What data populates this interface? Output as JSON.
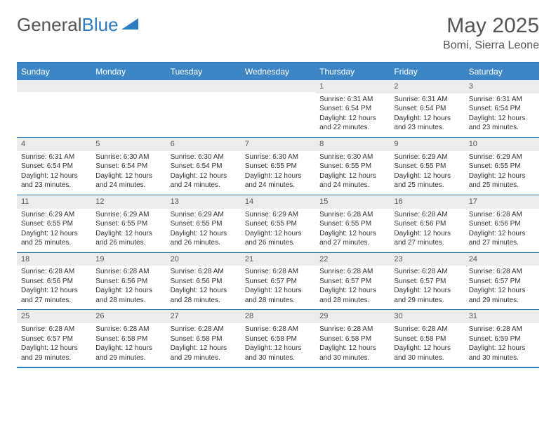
{
  "brand": {
    "part1": "General",
    "part2": "Blue"
  },
  "title": "May 2025",
  "location": "Bomi, Sierra Leone",
  "colors": {
    "header_bg": "#3d86c6",
    "border": "#2e7bc0",
    "daynum_bg": "#ececec",
    "text": "#333333",
    "muted": "#555555"
  },
  "weekdays": [
    "Sunday",
    "Monday",
    "Tuesday",
    "Wednesday",
    "Thursday",
    "Friday",
    "Saturday"
  ],
  "weeks": [
    [
      null,
      null,
      null,
      null,
      {
        "n": 1,
        "sr": "6:31 AM",
        "ss": "6:54 PM",
        "dl": "12 hours and 22 minutes."
      },
      {
        "n": 2,
        "sr": "6:31 AM",
        "ss": "6:54 PM",
        "dl": "12 hours and 23 minutes."
      },
      {
        "n": 3,
        "sr": "6:31 AM",
        "ss": "6:54 PM",
        "dl": "12 hours and 23 minutes."
      }
    ],
    [
      {
        "n": 4,
        "sr": "6:31 AM",
        "ss": "6:54 PM",
        "dl": "12 hours and 23 minutes."
      },
      {
        "n": 5,
        "sr": "6:30 AM",
        "ss": "6:54 PM",
        "dl": "12 hours and 24 minutes."
      },
      {
        "n": 6,
        "sr": "6:30 AM",
        "ss": "6:54 PM",
        "dl": "12 hours and 24 minutes."
      },
      {
        "n": 7,
        "sr": "6:30 AM",
        "ss": "6:55 PM",
        "dl": "12 hours and 24 minutes."
      },
      {
        "n": 8,
        "sr": "6:30 AM",
        "ss": "6:55 PM",
        "dl": "12 hours and 24 minutes."
      },
      {
        "n": 9,
        "sr": "6:29 AM",
        "ss": "6:55 PM",
        "dl": "12 hours and 25 minutes."
      },
      {
        "n": 10,
        "sr": "6:29 AM",
        "ss": "6:55 PM",
        "dl": "12 hours and 25 minutes."
      }
    ],
    [
      {
        "n": 11,
        "sr": "6:29 AM",
        "ss": "6:55 PM",
        "dl": "12 hours and 25 minutes."
      },
      {
        "n": 12,
        "sr": "6:29 AM",
        "ss": "6:55 PM",
        "dl": "12 hours and 26 minutes."
      },
      {
        "n": 13,
        "sr": "6:29 AM",
        "ss": "6:55 PM",
        "dl": "12 hours and 26 minutes."
      },
      {
        "n": 14,
        "sr": "6:29 AM",
        "ss": "6:55 PM",
        "dl": "12 hours and 26 minutes."
      },
      {
        "n": 15,
        "sr": "6:28 AM",
        "ss": "6:55 PM",
        "dl": "12 hours and 27 minutes."
      },
      {
        "n": 16,
        "sr": "6:28 AM",
        "ss": "6:56 PM",
        "dl": "12 hours and 27 minutes."
      },
      {
        "n": 17,
        "sr": "6:28 AM",
        "ss": "6:56 PM",
        "dl": "12 hours and 27 minutes."
      }
    ],
    [
      {
        "n": 18,
        "sr": "6:28 AM",
        "ss": "6:56 PM",
        "dl": "12 hours and 27 minutes."
      },
      {
        "n": 19,
        "sr": "6:28 AM",
        "ss": "6:56 PM",
        "dl": "12 hours and 28 minutes."
      },
      {
        "n": 20,
        "sr": "6:28 AM",
        "ss": "6:56 PM",
        "dl": "12 hours and 28 minutes."
      },
      {
        "n": 21,
        "sr": "6:28 AM",
        "ss": "6:57 PM",
        "dl": "12 hours and 28 minutes."
      },
      {
        "n": 22,
        "sr": "6:28 AM",
        "ss": "6:57 PM",
        "dl": "12 hours and 28 minutes."
      },
      {
        "n": 23,
        "sr": "6:28 AM",
        "ss": "6:57 PM",
        "dl": "12 hours and 29 minutes."
      },
      {
        "n": 24,
        "sr": "6:28 AM",
        "ss": "6:57 PM",
        "dl": "12 hours and 29 minutes."
      }
    ],
    [
      {
        "n": 25,
        "sr": "6:28 AM",
        "ss": "6:57 PM",
        "dl": "12 hours and 29 minutes."
      },
      {
        "n": 26,
        "sr": "6:28 AM",
        "ss": "6:58 PM",
        "dl": "12 hours and 29 minutes."
      },
      {
        "n": 27,
        "sr": "6:28 AM",
        "ss": "6:58 PM",
        "dl": "12 hours and 29 minutes."
      },
      {
        "n": 28,
        "sr": "6:28 AM",
        "ss": "6:58 PM",
        "dl": "12 hours and 30 minutes."
      },
      {
        "n": 29,
        "sr": "6:28 AM",
        "ss": "6:58 PM",
        "dl": "12 hours and 30 minutes."
      },
      {
        "n": 30,
        "sr": "6:28 AM",
        "ss": "6:58 PM",
        "dl": "12 hours and 30 minutes."
      },
      {
        "n": 31,
        "sr": "6:28 AM",
        "ss": "6:59 PM",
        "dl": "12 hours and 30 minutes."
      }
    ]
  ],
  "labels": {
    "sunrise": "Sunrise:",
    "sunset": "Sunset:",
    "daylight": "Daylight:"
  }
}
